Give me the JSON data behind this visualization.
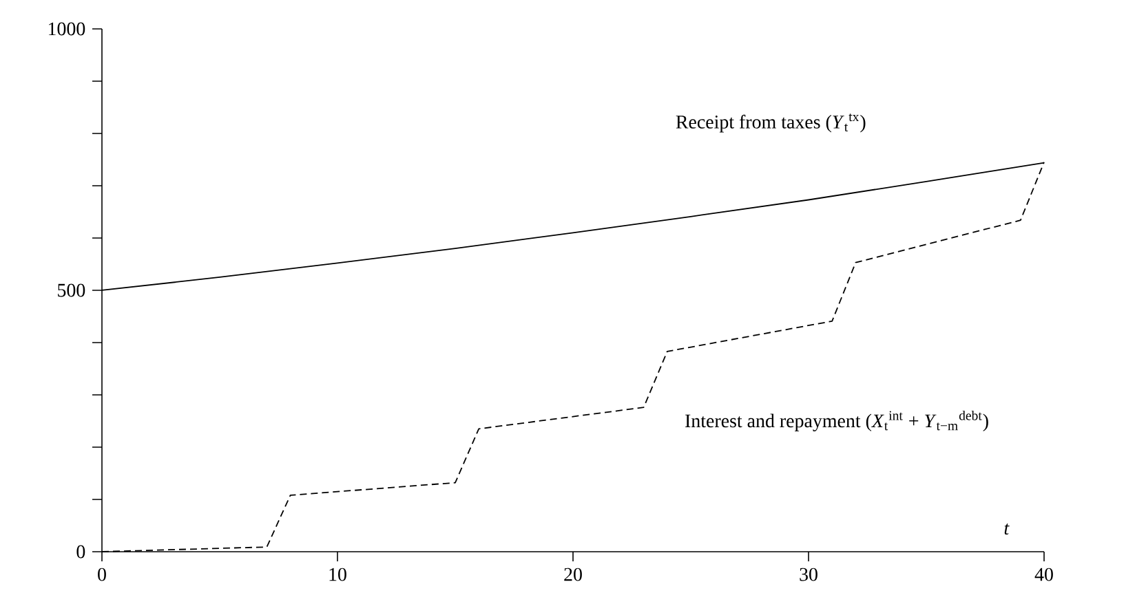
{
  "chart_data": {
    "type": "line",
    "xlabel": "t",
    "x": [
      0,
      5,
      10,
      15,
      20,
      25,
      30,
      35,
      40
    ],
    "series": [
      {
        "color": "#000000",
        "line_style": "solid",
        "values": [
          500,
          525,
          552,
          580,
          610,
          641,
          673,
          708,
          744
        ]
      },
      {
        "color": "#000000",
        "line_style": "dashed",
        "x": [
          0,
          7,
          8,
          15,
          16,
          23,
          24,
          31,
          32,
          39,
          40
        ],
        "values": [
          0,
          9,
          108,
          132,
          235,
          276,
          383,
          441,
          553,
          634,
          745
        ]
      }
    ],
    "xlim": [
      0,
      40
    ],
    "ylim": [
      0,
      1000
    ],
    "xticks": [
      0,
      10,
      20,
      30,
      40
    ],
    "yticks": [
      0,
      {
        "value": 100,
        "label": null
      },
      {
        "value": 200,
        "label": null
      },
      {
        "value": 300,
        "label": null
      },
      {
        "value": 400,
        "label": null
      },
      500,
      {
        "value": 600,
        "label": null
      },
      {
        "value": 700,
        "label": null
      },
      {
        "value": 800,
        "label": null
      },
      {
        "value": 900,
        "label": null
      },
      1000
    ],
    "grid": false,
    "annotations": [
      "Receipt from taxes (*Y*$_{t}$$^{tx}$)",
      "Interest and repayment (*X*$_{t}$$^{int}$ + *Y*$_{t−m}$$^{debt}$)"
    ]
  }
}
